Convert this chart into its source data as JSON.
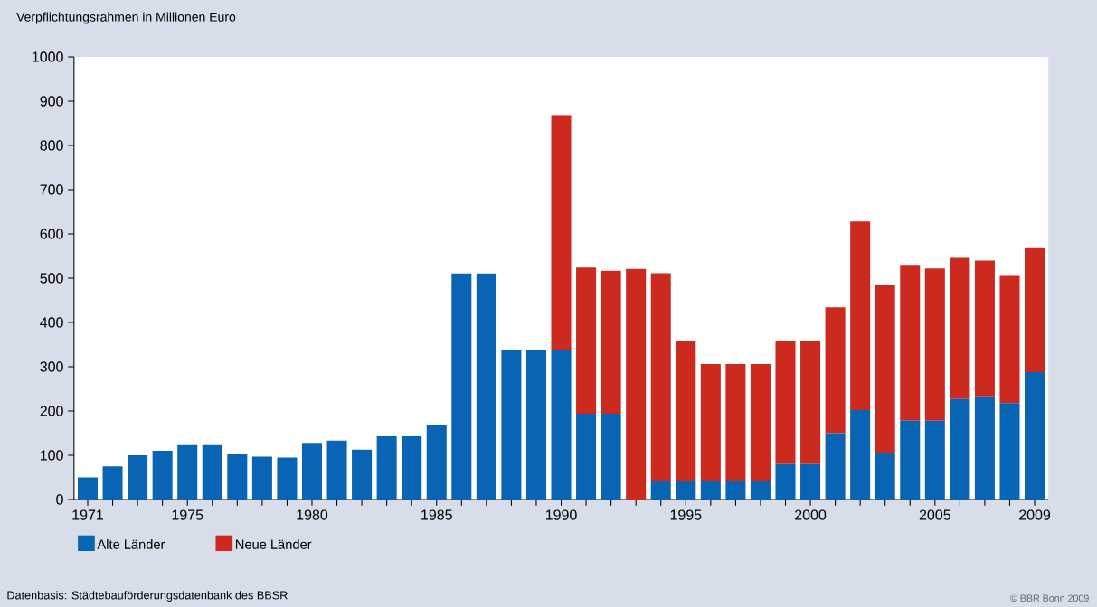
{
  "chart_data": {
    "type": "bar",
    "stacked": true,
    "ylabel": "Verpflichtungsrahmen in Millionen Euro",
    "categories": [
      "1971",
      null,
      null,
      null,
      "1975",
      null,
      null,
      null,
      null,
      "1980",
      null,
      null,
      null,
      null,
      "1985",
      null,
      null,
      null,
      null,
      "1990",
      null,
      null,
      null,
      null,
      "1995",
      null,
      null,
      null,
      null,
      "2000",
      null,
      null,
      null,
      null,
      "2005",
      null,
      null,
      null,
      "2009"
    ],
    "series": [
      {
        "name": "Alte Länder",
        "color": "#0a64b4",
        "values": [
          50,
          75,
          100,
          110,
          123,
          123,
          102,
          97,
          95,
          128,
          133,
          113,
          143,
          143,
          168,
          511,
          511,
          338,
          338,
          338,
          194,
          194,
          0,
          41,
          41,
          41,
          41,
          41,
          80,
          80,
          150,
          202,
          104,
          178,
          178,
          227,
          233,
          218,
          288
        ]
      },
      {
        "name": "Neue Länder",
        "color": "#cc2a1f",
        "values": [
          0,
          0,
          0,
          0,
          0,
          0,
          0,
          0,
          0,
          0,
          0,
          0,
          0,
          0,
          0,
          0,
          0,
          0,
          0,
          531,
          330,
          323,
          521,
          470,
          317,
          265,
          265,
          265,
          278,
          278,
          284,
          426,
          380,
          352,
          344,
          319,
          307,
          287,
          280
        ]
      }
    ],
    "ylim": [
      0,
      1000
    ],
    "yticks": [
      0,
      100,
      200,
      300,
      400,
      500,
      600,
      700,
      800,
      900,
      1000
    ],
    "legend": "bottom left",
    "annotations": [
      "Datenbasis: Städtebauförderungsdatenbank des BBSR",
      "© BBR Bonn 2009"
    ]
  }
}
